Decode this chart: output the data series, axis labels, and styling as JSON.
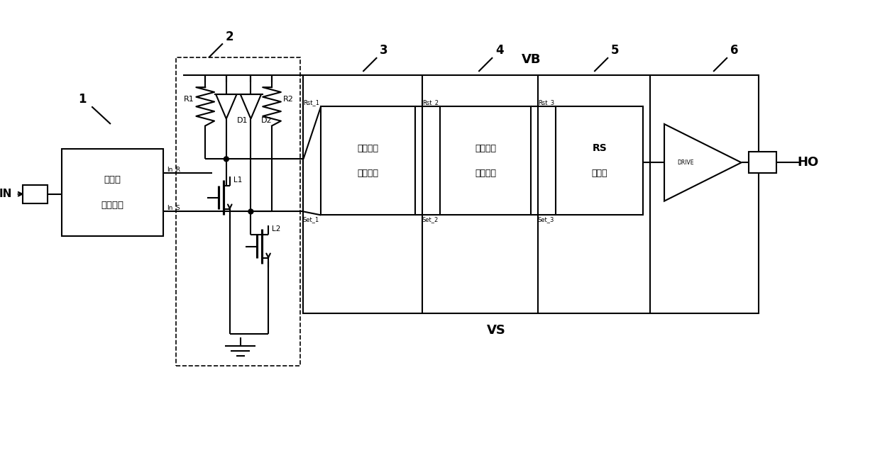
{
  "bg_color": "#ffffff",
  "line_color": "#000000",
  "fig_width": 12.4,
  "fig_height": 6.63,
  "dpi": 100,
  "labels": {
    "VB": "VB",
    "VS": "VS",
    "IN": "IN",
    "HO": "HO",
    "label1": "1",
    "label2": "2",
    "label3": "3",
    "label4": "4",
    "label5": "5",
    "label6": "6",
    "R1": "R1",
    "R2": "R2",
    "D1": "D1",
    "D2": "D2",
    "L1": "L1",
    "L2": "L2",
    "In_R": "In_R",
    "In_S": "In_S",
    "Rst_1": "Rst_1",
    "Set_1": "Set_1",
    "Rst_2": "Rst_2",
    "Set_2": "Set_2",
    "Rst_3": "Rst_3",
    "Set_3": "Set_3",
    "DRIVE": "DRIVE",
    "box1_line1": "双脉冲",
    "box1_line2": "产生电路",
    "box3_line1": "共模噪声",
    "box3_line2": "消除电路",
    "box4_line1": "差模噪声",
    "box4_line2": "消除电路",
    "box5_line1": "RS",
    "box5_line2": "触发器"
  }
}
